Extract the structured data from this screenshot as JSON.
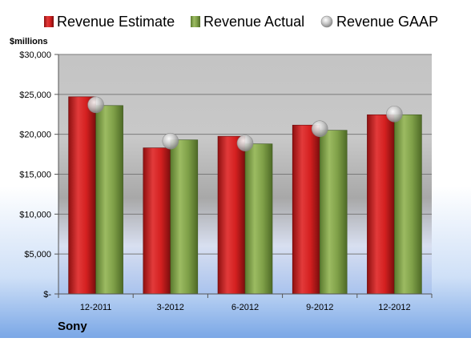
{
  "chart_data": {
    "type": "bar",
    "title": "Sony",
    "ylabel": "$millions",
    "categories": [
      "12-2011",
      "3-2012",
      "6-2012",
      "9-2012",
      "12-2012"
    ],
    "series": [
      {
        "name": "Revenue Estimate",
        "kind": "bar",
        "color": "#d42020",
        "values": [
          24700,
          18300,
          19750,
          21150,
          22450
        ]
      },
      {
        "name": "Revenue Actual",
        "kind": "bar",
        "color": "#7fa048",
        "values": [
          23600,
          19300,
          18800,
          20500,
          22450
        ]
      },
      {
        "name": "Revenue GAAP",
        "kind": "marker",
        "color": "#b8b8b8",
        "values": [
          23700,
          19150,
          18900,
          20700,
          22550
        ]
      }
    ],
    "ylim": [
      0,
      30000
    ],
    "yticks": [
      {
        "value": 0,
        "label": "$-"
      },
      {
        "value": 5000,
        "label": "$5,000"
      },
      {
        "value": 10000,
        "label": "$10,000"
      },
      {
        "value": 15000,
        "label": "$15,000"
      },
      {
        "value": 20000,
        "label": "$20,000"
      },
      {
        "value": 25000,
        "label": "$25,000"
      },
      {
        "value": 30000,
        "label": "$30,000"
      }
    ],
    "grid": true,
    "legend_position": "top"
  }
}
